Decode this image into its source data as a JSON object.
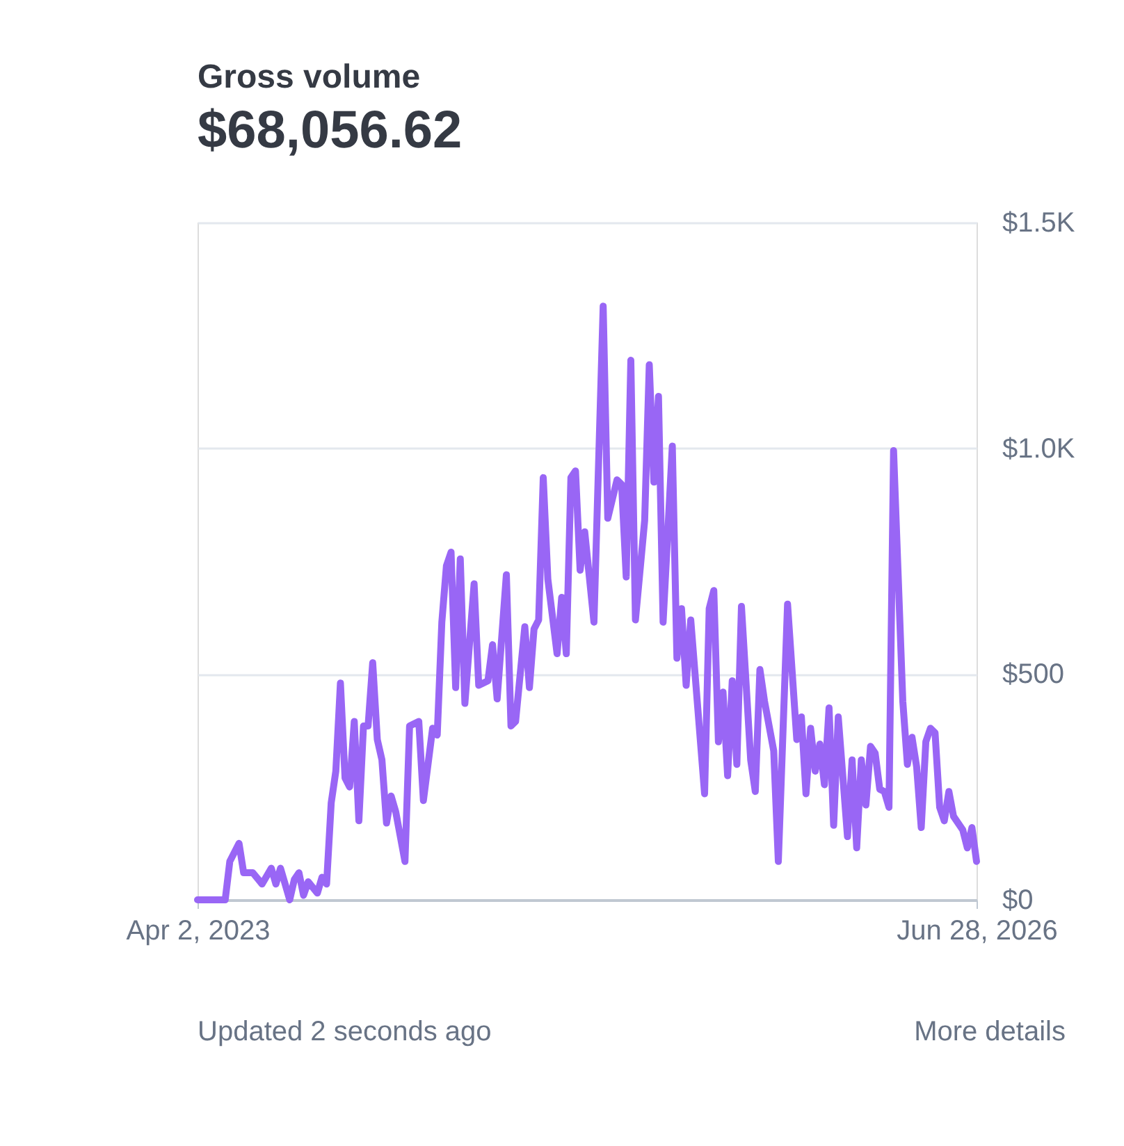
{
  "chart_data": {
    "type": "line",
    "title": "Gross volume",
    "subtitle": "$68,056.62",
    "annotations": [
      "Updated 2 seconds ago",
      "More details"
    ],
    "x": [
      "2023-04-02",
      "2023-04-23",
      "2023-05-14",
      "2023-05-21",
      "2023-06-04",
      "2023-06-11",
      "2023-06-25",
      "2023-07-09",
      "2023-07-23",
      "2023-07-30",
      "2023-08-06",
      "2023-08-20",
      "2023-08-27",
      "2023-09-03",
      "2023-09-10",
      "2023-09-17",
      "2023-10-01",
      "2023-10-08",
      "2023-10-15",
      "2023-10-22",
      "2023-10-29",
      "2023-11-05",
      "2023-11-12",
      "2023-11-19",
      "2023-11-26",
      "2023-12-03",
      "2023-12-10",
      "2023-12-17",
      "2023-12-24",
      "2023-12-31",
      "2024-01-07",
      "2024-01-14",
      "2024-01-21",
      "2024-01-28",
      "2024-02-11",
      "2024-02-18",
      "2024-03-03",
      "2024-03-10",
      "2024-03-24",
      "2024-03-31",
      "2024-04-07",
      "2024-04-14",
      "2024-04-21",
      "2024-04-28",
      "2024-05-05",
      "2024-05-12",
      "2024-05-26",
      "2024-06-02",
      "2024-06-16",
      "2024-06-23",
      "2024-06-30",
      "2024-07-14",
      "2024-07-21",
      "2024-07-28",
      "2024-08-11",
      "2024-08-18",
      "2024-08-25",
      "2024-09-01",
      "2024-09-08",
      "2024-09-15",
      "2024-09-29",
      "2024-10-06",
      "2024-10-13",
      "2024-10-20",
      "2024-10-27",
      "2024-11-03",
      "2024-11-10",
      "2024-11-24",
      "2024-12-08",
      "2024-12-15",
      "2024-12-29",
      "2025-01-05",
      "2025-01-12",
      "2025-01-19",
      "2025-01-26",
      "2025-02-09",
      "2025-02-16",
      "2025-02-23",
      "2025-03-02",
      "2025-03-09",
      "2025-03-23",
      "2025-03-30",
      "2025-04-06",
      "2025-04-13",
      "2025-04-20",
      "2025-05-11",
      "2025-05-18",
      "2025-05-25",
      "2025-06-01",
      "2025-06-08",
      "2025-06-15",
      "2025-06-22",
      "2025-06-29",
      "2025-07-06",
      "2025-07-20",
      "2025-07-27",
      "2025-08-03",
      "2025-08-10",
      "2025-08-24",
      "2025-08-31",
      "2025-09-14",
      "2025-09-28",
      "2025-10-05",
      "2025-10-12",
      "2025-10-19",
      "2025-10-26",
      "2025-11-02",
      "2025-11-09",
      "2025-11-16",
      "2025-11-23",
      "2025-11-30",
      "2025-12-14",
      "2025-12-21",
      "2025-12-28",
      "2026-01-04",
      "2026-01-11",
      "2026-01-18",
      "2026-01-25",
      "2026-02-01",
      "2026-02-08",
      "2026-02-15",
      "2026-02-22",
      "2026-03-08",
      "2026-03-15",
      "2026-03-22",
      "2026-03-29",
      "2026-04-05",
      "2026-04-12",
      "2026-04-19",
      "2026-04-26",
      "2026-05-03",
      "2026-05-10",
      "2026-05-17",
      "2026-05-24",
      "2026-06-07",
      "2026-06-14",
      "2026-06-21",
      "2026-06-28"
    ],
    "series": [
      {
        "color": "#9966f5",
        "values": [
          0,
          0,
          0,
          85,
          125,
          60,
          60,
          35,
          70,
          35,
          70,
          0,
          45,
          60,
          10,
          40,
          15,
          50,
          35,
          215,
          285,
          480,
          270,
          250,
          395,
          175,
          385,
          385,
          525,
          355,
          310,
          170,
          230,
          195,
          85,
          385,
          395,
          220,
          380,
          365,
          615,
          740,
          770,
          470,
          755,
          435,
          700,
          475,
          485,
          565,
          445,
          720,
          385,
          395,
          605,
          470,
          600,
          620,
          935,
          710,
          545,
          670,
          545,
          935,
          950,
          730,
          815,
          615,
          1315,
          845,
          930,
          920,
          715,
          1195,
          620,
          840,
          1185,
          925,
          1115,
          615,
          1005,
          535,
          645,
          475,
          620,
          235,
          645,
          685,
          350,
          460,
          275,
          485,
          300,
          650,
          310,
          240,
          510,
          440,
          330,
          85,
          655,
          355,
          405,
          235,
          380,
          285,
          345,
          255,
          425,
          165,
          405,
          140,
          310,
          115,
          310,
          210,
          340,
          325,
          245,
          240,
          205,
          995,
          440,
          300,
          360,
          295,
          160,
          350,
          380,
          370,
          205,
          175,
          240,
          185,
          155,
          115,
          160,
          85
        ]
      }
    ],
    "xlim": [
      "2023-04-02",
      "2026-06-28"
    ],
    "xticks": [
      {
        "value": "2023-04-02",
        "label": "Apr 2, 2023"
      },
      {
        "value": "2026-06-28",
        "label": "Jun 28, 2026"
      }
    ],
    "ylim": [
      0,
      1500
    ],
    "yticks": [
      {
        "value": 0,
        "label": "$0"
      },
      {
        "value": 500,
        "label": "$500"
      },
      {
        "value": 1000,
        "label": "$1.0K"
      },
      {
        "value": 1500,
        "label": "$1.5K"
      }
    ],
    "grid": "y",
    "legend": false,
    "marker": "none",
    "line_style": "solid"
  }
}
